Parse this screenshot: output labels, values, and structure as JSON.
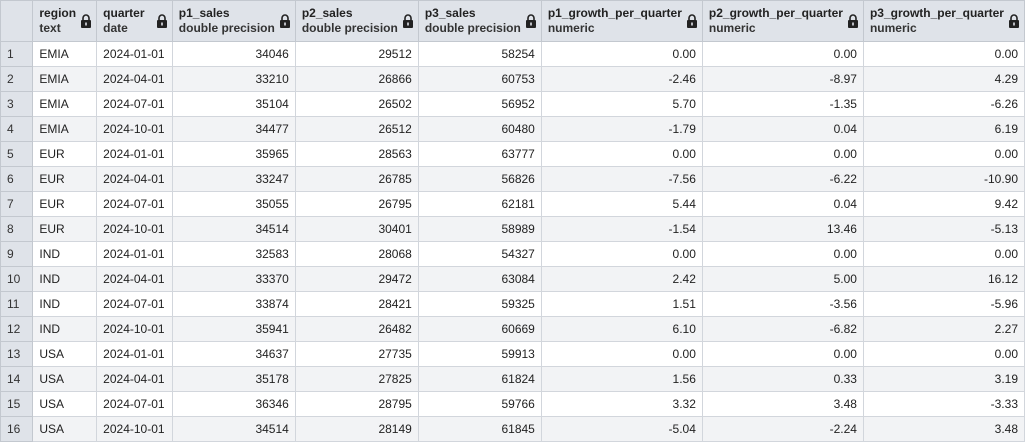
{
  "columns": [
    {
      "name": "region",
      "type": "text",
      "align": "left"
    },
    {
      "name": "quarter",
      "type": "date",
      "align": "left"
    },
    {
      "name": "p1_sales",
      "type": "double precision",
      "align": "right"
    },
    {
      "name": "p2_sales",
      "type": "double precision",
      "align": "right"
    },
    {
      "name": "p3_sales",
      "type": "double precision",
      "align": "right"
    },
    {
      "name": "p1_growth_per_quarter",
      "type": "numeric",
      "align": "right"
    },
    {
      "name": "p2_growth_per_quarter",
      "type": "numeric",
      "align": "right"
    },
    {
      "name": "p3_growth_per_quarter",
      "type": "numeric",
      "align": "right"
    }
  ],
  "rows": [
    {
      "index": "1",
      "cells": [
        "EMIA",
        "2024-01-01",
        "34046",
        "29512",
        "58254",
        "0.00",
        "0.00",
        "0.00"
      ]
    },
    {
      "index": "2",
      "cells": [
        "EMIA",
        "2024-04-01",
        "33210",
        "26866",
        "60753",
        "-2.46",
        "-8.97",
        "4.29"
      ]
    },
    {
      "index": "3",
      "cells": [
        "EMIA",
        "2024-07-01",
        "35104",
        "26502",
        "56952",
        "5.70",
        "-1.35",
        "-6.26"
      ]
    },
    {
      "index": "4",
      "cells": [
        "EMIA",
        "2024-10-01",
        "34477",
        "26512",
        "60480",
        "-1.79",
        "0.04",
        "6.19"
      ]
    },
    {
      "index": "5",
      "cells": [
        "EUR",
        "2024-01-01",
        "35965",
        "28563",
        "63777",
        "0.00",
        "0.00",
        "0.00"
      ]
    },
    {
      "index": "6",
      "cells": [
        "EUR",
        "2024-04-01",
        "33247",
        "26785",
        "56826",
        "-7.56",
        "-6.22",
        "-10.90"
      ]
    },
    {
      "index": "7",
      "cells": [
        "EUR",
        "2024-07-01",
        "35055",
        "26795",
        "62181",
        "5.44",
        "0.04",
        "9.42"
      ]
    },
    {
      "index": "8",
      "cells": [
        "EUR",
        "2024-10-01",
        "34514",
        "30401",
        "58989",
        "-1.54",
        "13.46",
        "-5.13"
      ]
    },
    {
      "index": "9",
      "cells": [
        "IND",
        "2024-01-01",
        "32583",
        "28068",
        "54327",
        "0.00",
        "0.00",
        "0.00"
      ]
    },
    {
      "index": "10",
      "cells": [
        "IND",
        "2024-04-01",
        "33370",
        "29472",
        "63084",
        "2.42",
        "5.00",
        "16.12"
      ]
    },
    {
      "index": "11",
      "cells": [
        "IND",
        "2024-07-01",
        "33874",
        "28421",
        "59325",
        "1.51",
        "-3.56",
        "-5.96"
      ]
    },
    {
      "index": "12",
      "cells": [
        "IND",
        "2024-10-01",
        "35941",
        "26482",
        "60669",
        "6.10",
        "-6.82",
        "2.27"
      ]
    },
    {
      "index": "13",
      "cells": [
        "USA",
        "2024-01-01",
        "34637",
        "27735",
        "59913",
        "0.00",
        "0.00",
        "0.00"
      ]
    },
    {
      "index": "14",
      "cells": [
        "USA",
        "2024-04-01",
        "35178",
        "27825",
        "61824",
        "1.56",
        "0.33",
        "3.19"
      ]
    },
    {
      "index": "15",
      "cells": [
        "USA",
        "2024-07-01",
        "36346",
        "28795",
        "59766",
        "3.32",
        "3.48",
        "-3.33"
      ]
    },
    {
      "index": "16",
      "cells": [
        "USA",
        "2024-10-01",
        "34514",
        "28149",
        "61845",
        "-5.04",
        "-2.24",
        "3.48"
      ]
    }
  ],
  "lock_icon": "lock-icon",
  "colors": {
    "header_bg": "#dfe3e9",
    "row_alt_bg": "#f2f3f5",
    "grid_line": "#d2d6dc"
  }
}
